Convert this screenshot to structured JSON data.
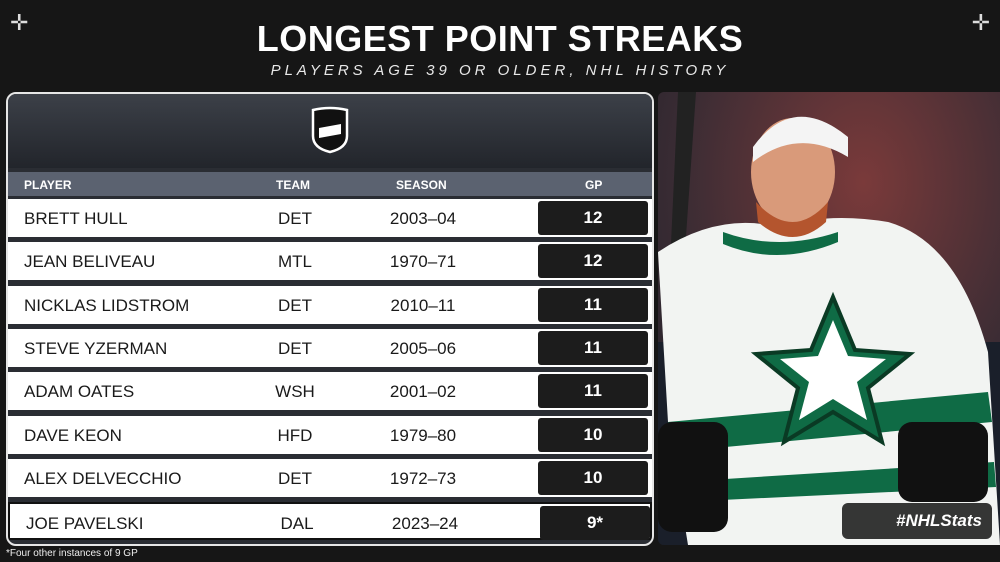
{
  "header": {
    "title": "LONGEST POINT STREAKS",
    "subtitle": "PLAYERS AGE 39 OR OLDER, NHL HISTORY"
  },
  "table": {
    "columns": [
      "PLAYER",
      "TEAM",
      "SEASON",
      "GP"
    ],
    "rows": [
      [
        "BRETT HULL",
        "DET",
        "2003–04",
        "12"
      ],
      [
        "JEAN BELIVEAU",
        "MTL",
        "1970–71",
        "12"
      ],
      [
        "NICKLAS LIDSTROM",
        "DET",
        "2010–11",
        "11"
      ],
      [
        "STEVE YZERMAN",
        "DET",
        "2005–06",
        "11"
      ],
      [
        "ADAM OATES",
        "WSH",
        "2001–02",
        "11"
      ],
      [
        "DAVE KEON",
        "HFD",
        "1979–80",
        "10"
      ],
      [
        "ALEX DELVECCHIO",
        "DET",
        "1972–73",
        "10"
      ],
      [
        "JOE PAVELSKI",
        "DAL",
        "2023–24",
        "9*"
      ]
    ]
  },
  "footnote": "*Four other instances of 9 GP",
  "hashtag": "#NHLStats"
}
